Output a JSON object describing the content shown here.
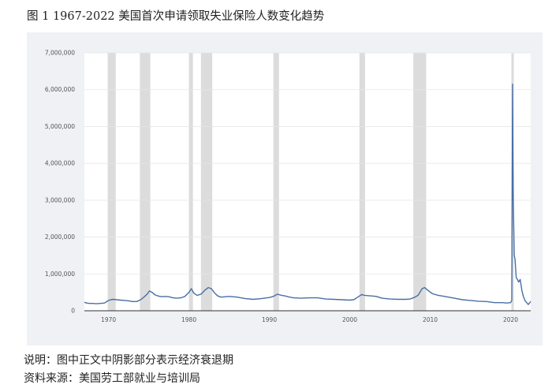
{
  "figure": {
    "title": "图 1 1967-2022 美国首次申请领取失业保险人数变化趋势"
  },
  "notes": {
    "recession_note": "说明：图中正文中阴影部分表示经济衰退期",
    "source": "资料来源：美国劳工部就业与培训局"
  },
  "chart_data": {
    "type": "line",
    "title": "",
    "xlabel": "",
    "ylabel": "",
    "xlim": [
      1967,
      2022.5
    ],
    "ylim": [
      0,
      7000000
    ],
    "grid": "horizontal",
    "legend": "none",
    "y_ticks": [
      0,
      1000000,
      2000000,
      3000000,
      4000000,
      5000000,
      6000000,
      7000000
    ],
    "y_tick_labels": [
      "0",
      "1,000,000",
      "2,000,000",
      "3,000,000",
      "4,000,000",
      "5,000,000",
      "6,000,000",
      "7,000,000"
    ],
    "x_ticks": [
      1970,
      1980,
      1990,
      2000,
      2010,
      2020
    ],
    "x_tick_labels": [
      "1970",
      "1980",
      "1990",
      "2000",
      "2010",
      "2020"
    ],
    "recessions": [
      [
        1969.9,
        1970.9
      ],
      [
        1973.9,
        1975.2
      ],
      [
        1980.0,
        1980.5
      ],
      [
        1981.5,
        1982.9
      ],
      [
        1990.5,
        1991.2
      ],
      [
        2001.2,
        2001.9
      ],
      [
        2007.9,
        2009.5
      ],
      [
        2020.1,
        2020.4
      ]
    ],
    "line_color": "#4a6fa5",
    "series": [
      {
        "x": [
          1967.0,
          1967.3,
          1967.6,
          1968.0,
          1968.5,
          1969.0,
          1969.5,
          1970.0,
          1970.3,
          1970.6,
          1971.0,
          1971.5,
          1972.0,
          1972.5,
          1973.0,
          1973.5,
          1974.0,
          1974.4,
          1974.8,
          1975.1,
          1975.4,
          1975.8,
          1976.2,
          1976.6,
          1977.0,
          1977.5,
          1978.0,
          1978.5,
          1979.0,
          1979.5,
          1980.0,
          1980.3,
          1980.6,
          1981.0,
          1981.5,
          1982.0,
          1982.4,
          1982.8,
          1983.2,
          1983.6,
          1984.0,
          1985.0,
          1986.0,
          1987.0,
          1988.0,
          1989.0,
          1990.0,
          1990.5,
          1991.0,
          1991.5,
          1992.0,
          1992.5,
          1993.0,
          1994.0,
          1995.0,
          1996.0,
          1997.0,
          1998.0,
          1999.0,
          2000.0,
          2000.5,
          2001.0,
          2001.5,
          2001.8,
          2002.2,
          2002.8,
          2003.3,
          2004.0,
          2005.0,
          2006.0,
          2007.0,
          2007.5,
          2008.0,
          2008.5,
          2009.0,
          2009.3,
          2009.8,
          2010.3,
          2011.0,
          2012.0,
          2013.0,
          2014.0,
          2015.0,
          2016.0,
          2017.0,
          2018.0,
          2019.0,
          2019.5,
          2020.0,
          2020.15,
          2020.2,
          2020.24,
          2020.28,
          2020.33,
          2020.38,
          2020.45,
          2020.55,
          2020.7,
          2020.85,
          2021.0,
          2021.2,
          2021.4,
          2021.6,
          2021.8,
          2022.0,
          2022.2,
          2022.5
        ],
        "y": [
          230000,
          210000,
          200000,
          200000,
          190000,
          200000,
          210000,
          280000,
          300000,
          310000,
          300000,
          290000,
          280000,
          270000,
          250000,
          250000,
          300000,
          370000,
          450000,
          540000,
          500000,
          430000,
          400000,
          380000,
          390000,
          380000,
          350000,
          340000,
          350000,
          390000,
          500000,
          600000,
          480000,
          420000,
          450000,
          560000,
          630000,
          600000,
          480000,
          400000,
          370000,
          390000,
          370000,
          330000,
          310000,
          330000,
          360000,
          390000,
          450000,
          420000,
          400000,
          370000,
          350000,
          340000,
          350000,
          350000,
          320000,
          310000,
          300000,
          290000,
          300000,
          370000,
          440000,
          420000,
          410000,
          400000,
          390000,
          340000,
          320000,
          310000,
          310000,
          320000,
          360000,
          420000,
          600000,
          630000,
          540000,
          460000,
          420000,
          380000,
          340000,
          300000,
          280000,
          260000,
          250000,
          220000,
          220000,
          210000,
          220000,
          280000,
          3300000,
          6150000,
          4500000,
          3000000,
          2400000,
          1500000,
          1400000,
          900000,
          850000,
          780000,
          850000,
          550000,
          380000,
          270000,
          220000,
          170000,
          250000
        ]
      }
    ]
  }
}
